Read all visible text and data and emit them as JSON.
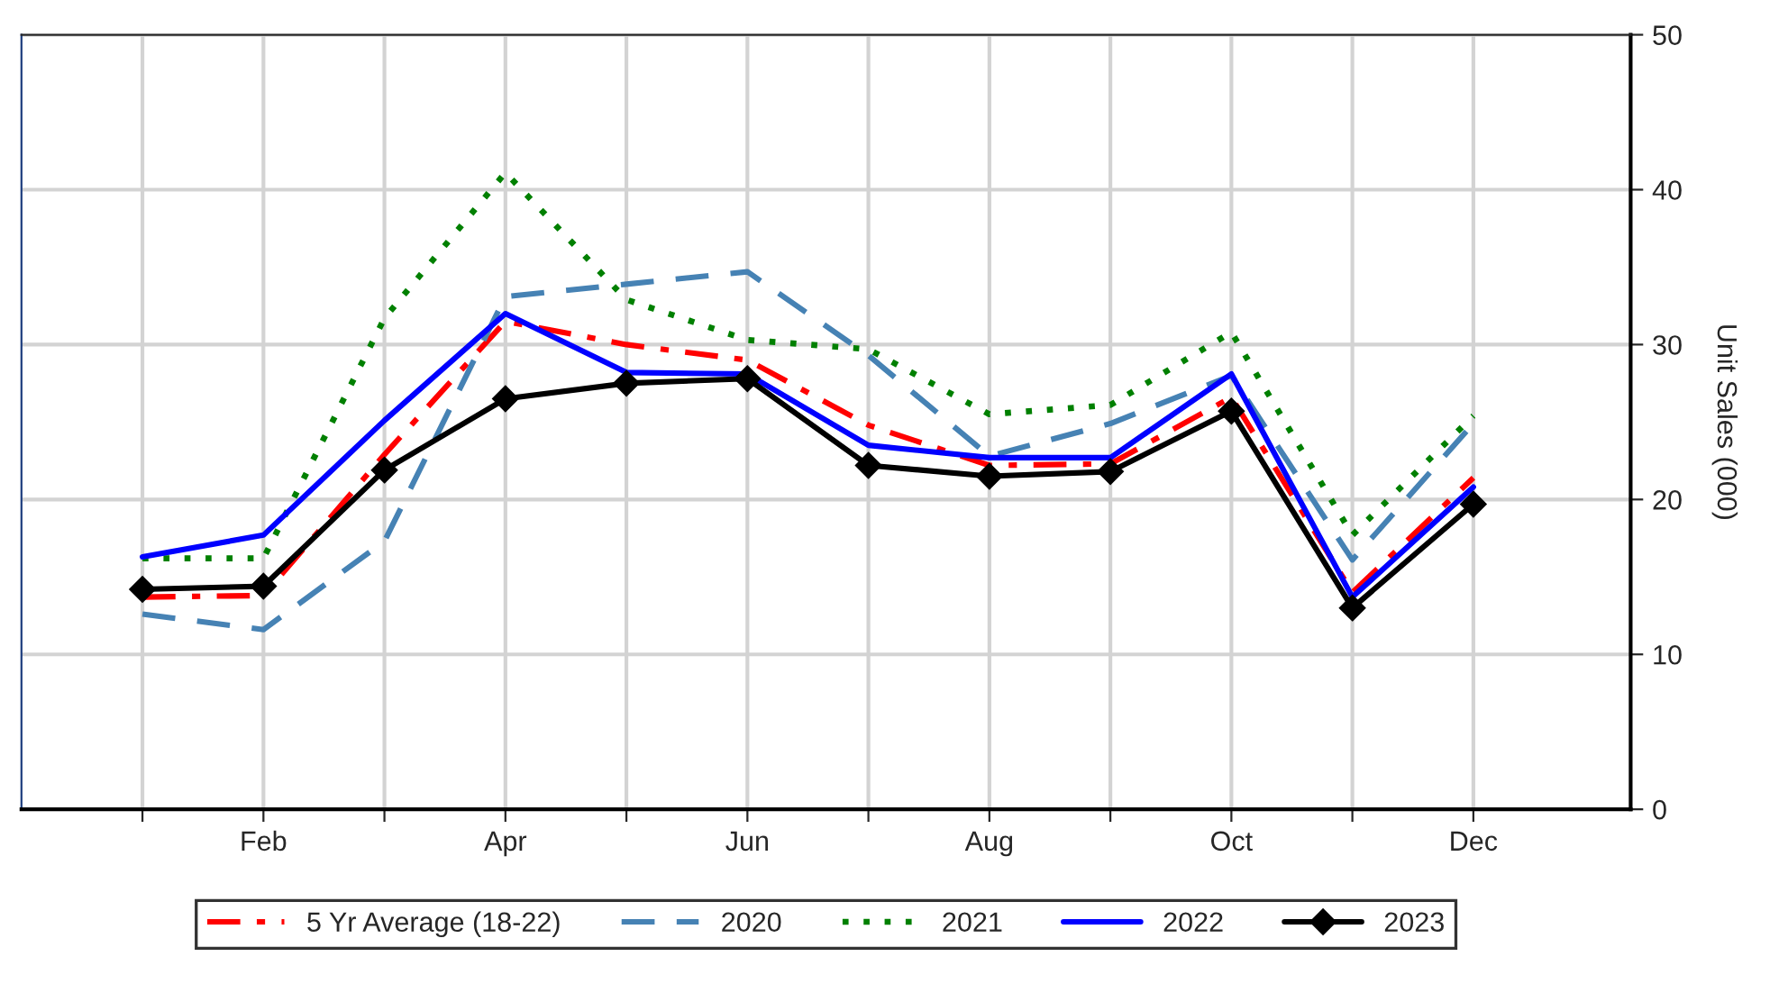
{
  "chart_data": {
    "type": "line",
    "ylabel": "Unit Sales (000)",
    "categories": [
      null,
      "Feb",
      null,
      "Apr",
      null,
      "Jun",
      null,
      "Aug",
      null,
      "Oct",
      null,
      "Dec"
    ],
    "ylim": [
      0,
      50
    ],
    "yticks": [
      0,
      10,
      20,
      30,
      40,
      50
    ],
    "grid": true,
    "legend": "bottom",
    "series": [
      {
        "name": "5 Yr Average (18-22)",
        "color": "#ff0000",
        "line_style": "dashdot",
        "marker": "none",
        "values": [
          13.7,
          13.8,
          22.9,
          31.5,
          30.0,
          29.0,
          24.8,
          22.2,
          22.3,
          26.6,
          14.0,
          21.4
        ]
      },
      {
        "name": "2020",
        "color": "#4682b4",
        "line_style": "dashed",
        "marker": "none",
        "values": [
          12.6,
          11.6,
          17.3,
          33.1,
          33.9,
          34.7,
          29.3,
          22.8,
          24.9,
          28.0,
          16.1,
          24.9
        ]
      },
      {
        "name": "2021",
        "color": "#008000",
        "line_style": "dotted",
        "marker": "none",
        "values": [
          16.2,
          16.2,
          31.7,
          41.1,
          32.9,
          30.3,
          29.7,
          25.5,
          26.1,
          30.8,
          17.7,
          25.4
        ]
      },
      {
        "name": "2022",
        "color": "#0000ff",
        "line_style": "solid",
        "marker": "none",
        "values": [
          16.3,
          17.7,
          25.1,
          32.0,
          28.2,
          28.1,
          23.5,
          22.7,
          22.7,
          28.1,
          13.7,
          20.8
        ]
      },
      {
        "name": "2023",
        "color": "#000000",
        "line_style": "solid",
        "marker": "diamond",
        "values": [
          14.2,
          14.4,
          21.9,
          26.5,
          27.5,
          27.8,
          22.2,
          21.5,
          21.8,
          25.7,
          13.0,
          19.7
        ]
      }
    ]
  }
}
